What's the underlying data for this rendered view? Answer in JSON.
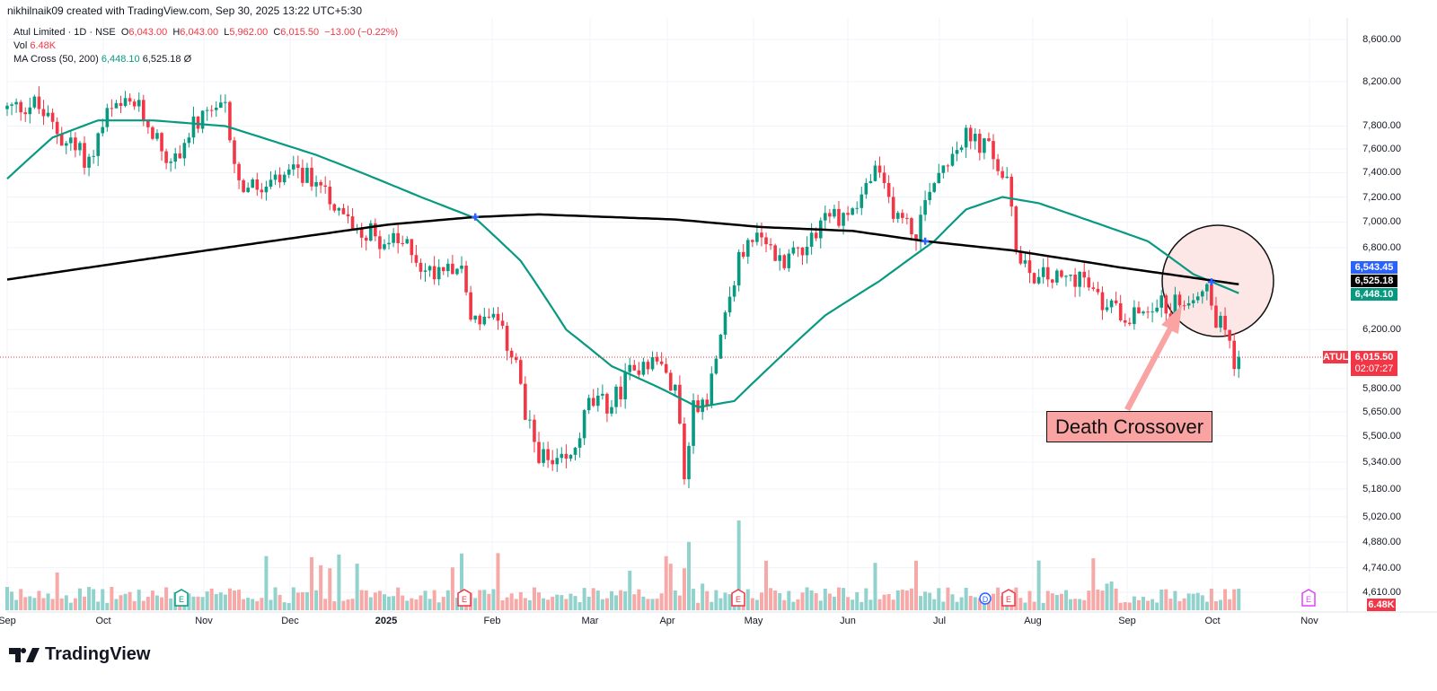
{
  "credit": "nikhilnaik09 created with TradingView.com, Sep 30, 2025 13:22 UTC+5:30",
  "legend": {
    "symbol": "Atul Limited · 1D · NSE",
    "o_label": "O",
    "o": "6,043.00",
    "h_label": "H",
    "h": "6,043.00",
    "l_label": "L",
    "l": "5,962.00",
    "c_label": "C",
    "c": "6,015.50",
    "change": "−13.00 (−0.22%)",
    "vol_label": "Vol",
    "vol": "6.48K",
    "ma_label": "MA Cross (50, 200)",
    "ma50": "6,448.10",
    "ma200": "6,525.18",
    "ma_extra": "Ø"
  },
  "y_axis": [
    "8,600.00",
    "8,200.00",
    "7,800.00",
    "7,600.00",
    "7,400.00",
    "7,200.00",
    "7,000.00",
    "6,800.00",
    "6,200.00",
    "5,800.00",
    "5,650.00",
    "5,500.00",
    "5,340.00",
    "5,180.00",
    "5,020.00",
    "4,880.00",
    "4,740.00",
    "4,610.00"
  ],
  "badges": {
    "ma_cross": "6,543.45",
    "ma200": "6,525.18",
    "ma50": "6,448.10",
    "ticker": "ATUL",
    "price": "6,015.50",
    "countdown": "02:07:27",
    "volume": "6.48K"
  },
  "x_axis": [
    "Sep",
    "Oct",
    "Nov",
    "Dec",
    "2025",
    "Feb",
    "Mar",
    "Apr",
    "May",
    "Jun",
    "Jul",
    "Aug",
    "Sep",
    "Oct",
    "Nov"
  ],
  "annotation": "Death Crossover",
  "brand": "TradingView",
  "colors": {
    "up": "#089981",
    "down": "#f23645",
    "ma50": "#089981",
    "ma200": "#000000",
    "cross": "#2962ff"
  },
  "chart_data": {
    "type": "candlestick",
    "scale": "log",
    "close_path": [
      [
        0,
        7950
      ],
      [
        6,
        8000
      ],
      [
        12,
        7700
      ],
      [
        18,
        7500
      ],
      [
        22,
        7900
      ],
      [
        28,
        8000
      ],
      [
        33,
        7700
      ],
      [
        36,
        7450
      ],
      [
        41,
        7800
      ],
      [
        48,
        7950
      ],
      [
        51,
        7300
      ],
      [
        56,
        7250
      ],
      [
        64,
        7400
      ],
      [
        70,
        7300
      ],
      [
        73,
        7050
      ],
      [
        78,
        6950
      ],
      [
        83,
        6850
      ],
      [
        89,
        6800
      ],
      [
        92,
        6600
      ],
      [
        97,
        6700
      ],
      [
        100,
        6650
      ],
      [
        102,
        6300
      ],
      [
        107,
        6250
      ],
      [
        112,
        6000
      ],
      [
        114,
        5600
      ],
      [
        117,
        5400
      ],
      [
        120,
        5300
      ],
      [
        124,
        5350
      ],
      [
        128,
        5700
      ],
      [
        133,
        5700
      ],
      [
        137,
        5900
      ],
      [
        141,
        6000
      ],
      [
        144,
        5950
      ],
      [
        147,
        5800
      ],
      [
        149,
        5300
      ],
      [
        151,
        5700
      ],
      [
        154,
        5750
      ],
      [
        157,
        6200
      ],
      [
        161,
        6700
      ],
      [
        164,
        6900
      ],
      [
        170,
        6700
      ],
      [
        176,
        6850
      ],
      [
        180,
        7050
      ],
      [
        185,
        7050
      ],
      [
        191,
        7400
      ],
      [
        195,
        7100
      ],
      [
        200,
        6900
      ],
      [
        203,
        7300
      ],
      [
        208,
        7600
      ],
      [
        211,
        7700
      ],
      [
        216,
        7600
      ],
      [
        220,
        7300
      ],
      [
        222,
        6800
      ],
      [
        226,
        6600
      ],
      [
        232,
        6550
      ],
      [
        236,
        6600
      ],
      [
        240,
        6400
      ],
      [
        244,
        6350
      ],
      [
        248,
        6300
      ],
      [
        252,
        6400
      ],
      [
        256,
        6350
      ],
      [
        260,
        6450
      ],
      [
        264,
        6550
      ],
      [
        265,
        6300
      ],
      [
        268,
        6250
      ],
      [
        270,
        6000
      ],
      [
        271,
        6015
      ]
    ],
    "ma50": [
      [
        0,
        7350
      ],
      [
        10,
        7700
      ],
      [
        20,
        7850
      ],
      [
        32,
        7850
      ],
      [
        48,
        7800
      ],
      [
        68,
        7550
      ],
      [
        78,
        7400
      ],
      [
        91,
        7200
      ],
      [
        103,
        7030
      ],
      [
        113,
        6700
      ],
      [
        123,
        6200
      ],
      [
        133,
        5950
      ],
      [
        144,
        5800
      ],
      [
        152,
        5680
      ],
      [
        160,
        5720
      ],
      [
        168,
        5950
      ],
      [
        180,
        6300
      ],
      [
        192,
        6550
      ],
      [
        204,
        6850
      ],
      [
        211,
        7100
      ],
      [
        219,
        7200
      ],
      [
        227,
        7150
      ],
      [
        239,
        7000
      ],
      [
        251,
        6850
      ],
      [
        261,
        6600
      ],
      [
        271,
        6460
      ]
    ],
    "ma200": [
      [
        0,
        6560
      ],
      [
        28,
        6700
      ],
      [
        58,
        6850
      ],
      [
        84,
        6980
      ],
      [
        103,
        7040
      ],
      [
        117,
        7060
      ],
      [
        147,
        7020
      ],
      [
        166,
        6960
      ],
      [
        186,
        6930
      ],
      [
        202,
        6850
      ],
      [
        221,
        6780
      ],
      [
        245,
        6650
      ],
      [
        271,
        6525
      ]
    ],
    "crosses": [
      [
        103,
        7040
      ],
      [
        202,
        6850
      ],
      [
        265,
        6543
      ]
    ]
  }
}
